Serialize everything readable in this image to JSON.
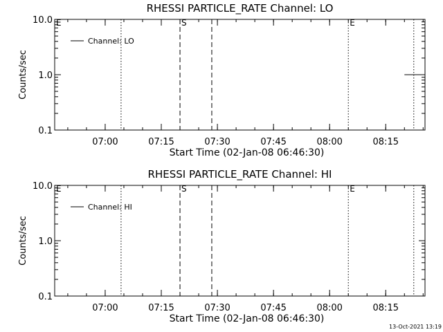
{
  "footer": {
    "timestamp": "13-Oct-2021 13:19"
  },
  "chart_data": [
    {
      "type": "line",
      "title": "RHESSI PARTICLE_RATE Channel: LO",
      "xlabel": "Start Time (02-Jan-08 06:46:30)",
      "ylabel": "Counts/sec",
      "y_scale": "log",
      "ylim": [
        0.1,
        10.0
      ],
      "y_ticks": [
        "0.1",
        "1.0",
        "10.0"
      ],
      "xlim": [
        "06:46:30",
        "08:25:30"
      ],
      "x_ticks": [
        "07:00",
        "07:15",
        "07:30",
        "07:45",
        "08:00",
        "08:15"
      ],
      "grid": false,
      "legend": {
        "position": "top-left",
        "entries": [
          "Channel: LO"
        ]
      },
      "series": [
        {
          "name": "Channel: LO",
          "x": [
            "08:20:00",
            "08:24:00"
          ],
          "y": [
            1.0,
            1.0
          ]
        }
      ],
      "markers": [
        {
          "label": "E",
          "time": "06:46:30",
          "style": "dotted"
        },
        {
          "label": "",
          "time": "07:04:15",
          "style": "dotted"
        },
        {
          "label": "S",
          "time": "07:20:00",
          "style": "dashed"
        },
        {
          "label": "",
          "time": "07:28:30",
          "style": "dashed"
        },
        {
          "label": "E",
          "time": "08:05:00",
          "style": "dotted"
        },
        {
          "label": "",
          "time": "08:22:30",
          "style": "dotted"
        }
      ]
    },
    {
      "type": "line",
      "title": "RHESSI PARTICLE_RATE Channel: HI",
      "xlabel": "Start Time (02-Jan-08 06:46:30)",
      "ylabel": "Counts/sec",
      "y_scale": "log",
      "ylim": [
        0.1,
        10.0
      ],
      "y_ticks": [
        "0.1",
        "1.0",
        "10.0"
      ],
      "xlim": [
        "06:46:30",
        "08:25:30"
      ],
      "x_ticks": [
        "07:00",
        "07:15",
        "07:30",
        "07:45",
        "08:00",
        "08:15"
      ],
      "grid": false,
      "legend": {
        "position": "top-left",
        "entries": [
          "Channel: HI"
        ]
      },
      "series": [
        {
          "name": "Channel: HI",
          "x": [],
          "y": []
        }
      ],
      "markers": [
        {
          "label": "E",
          "time": "06:46:30",
          "style": "dotted"
        },
        {
          "label": "",
          "time": "07:04:15",
          "style": "dotted"
        },
        {
          "label": "S",
          "time": "07:20:00",
          "style": "dashed"
        },
        {
          "label": "",
          "time": "07:28:30",
          "style": "dashed"
        },
        {
          "label": "E",
          "time": "08:05:00",
          "style": "dotted"
        },
        {
          "label": "",
          "time": "08:22:30",
          "style": "dotted"
        }
      ]
    }
  ]
}
